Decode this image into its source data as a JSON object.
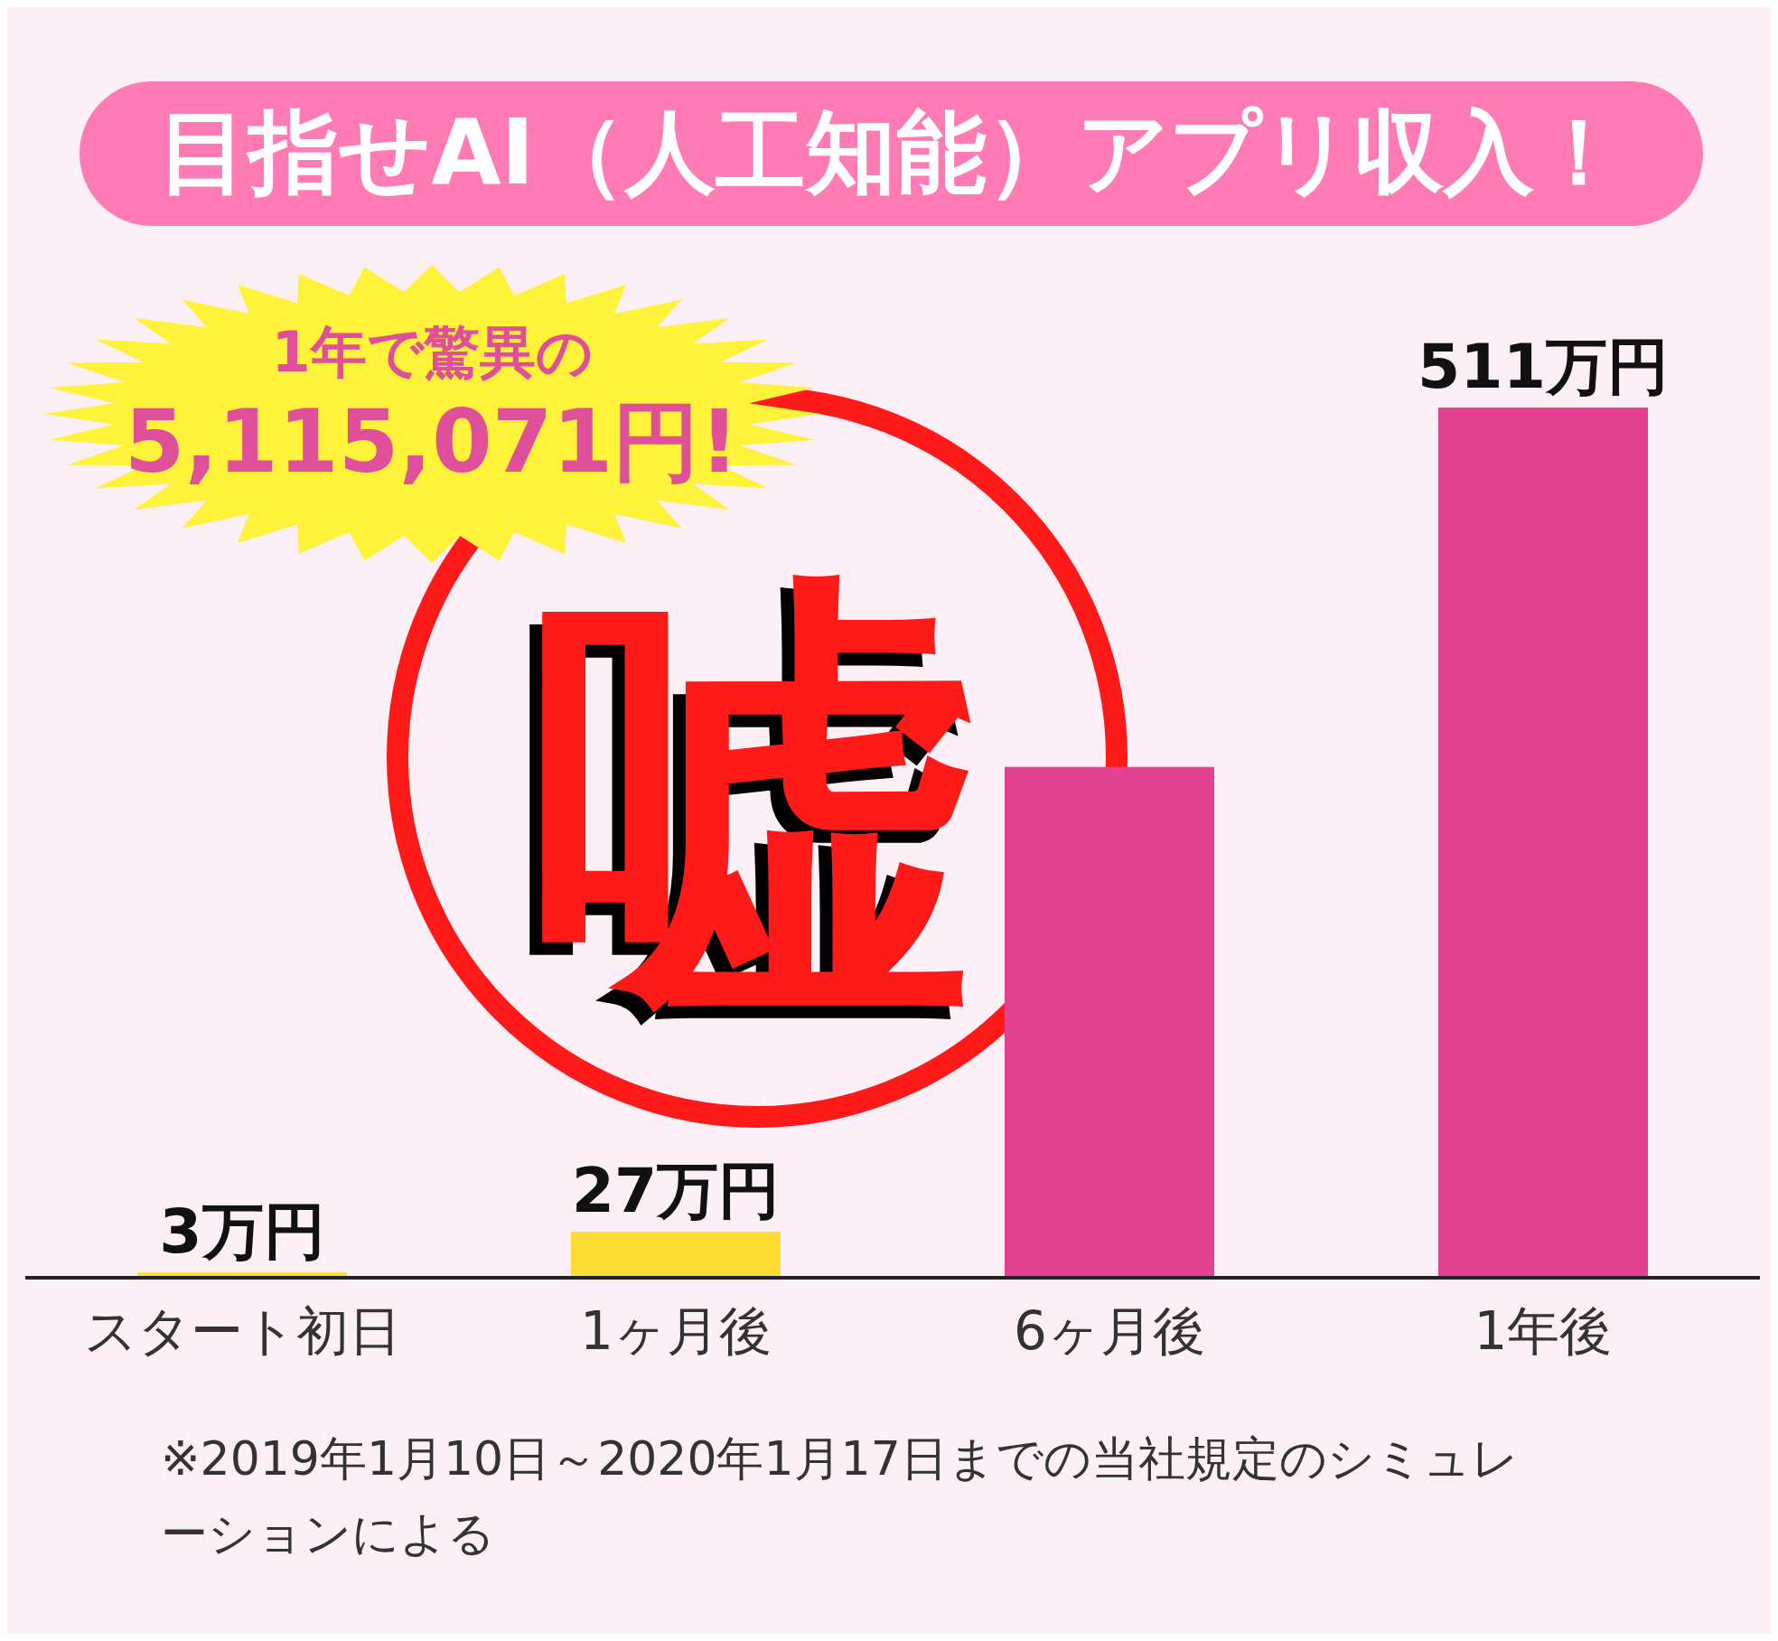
{
  "chart_data": {
    "type": "bar",
    "title": "目指せAI（人工知能）アプリ収入！",
    "categories": [
      "スタート初日",
      "1ヶ月後",
      "6ヶ月後",
      "1年後"
    ],
    "values": [
      3,
      27,
      300,
      511
    ],
    "colors": [
      "#fddc35",
      "#fddc35",
      "#e2428f",
      "#e2428f"
    ],
    "value_labels": [
      "3万円",
      "27万円",
      null,
      "511万円"
    ],
    "annotations": [
      "1年で驚異の",
      "5,115,071円!",
      "嘘",
      "※2019年1月10日～2020年1月17日までの当社規定のシミュレーションによる"
    ]
  }
}
